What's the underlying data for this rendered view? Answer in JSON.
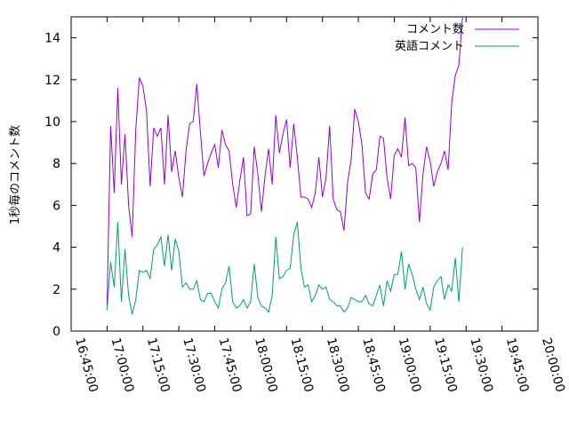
{
  "chart_data": {
    "type": "line",
    "title": "",
    "xlabel": "",
    "ylabel": "1秒毎のコメント数",
    "xlim": [
      "16:45:00",
      "20:00:00"
    ],
    "ylim": [
      0,
      15
    ],
    "x_ticks": [
      "16:45:00",
      "17:00:00",
      "17:15:00",
      "17:30:00",
      "17:45:00",
      "18:00:00",
      "18:15:00",
      "18:30:00",
      "18:45:00",
      "19:00:00",
      "19:15:00",
      "19:30:00",
      "19:45:00",
      "20:00:00"
    ],
    "y_ticks": [
      0,
      2,
      4,
      6,
      8,
      10,
      12,
      14
    ],
    "grid": false,
    "legend": "top-right",
    "series": [
      {
        "name": "コメント数",
        "color": "#9400d3",
        "points": [
          [
            "17:00:00",
            1.2
          ],
          [
            "17:01:30",
            9.8
          ],
          [
            "17:03:00",
            6.6
          ],
          [
            "17:04:30",
            11.6
          ],
          [
            "17:06:00",
            7.0
          ],
          [
            "17:07:30",
            9.4
          ],
          [
            "17:09:00",
            6.0
          ],
          [
            "17:10:30",
            4.5
          ],
          [
            "17:12:00",
            9.6
          ],
          [
            "17:13:30",
            12.1
          ],
          [
            "17:15:00",
            11.7
          ],
          [
            "17:16:30",
            10.5
          ],
          [
            "17:18:00",
            6.9
          ],
          [
            "17:19:30",
            9.7
          ],
          [
            "17:21:00",
            9.3
          ],
          [
            "17:22:30",
            9.7
          ],
          [
            "17:24:00",
            7.0
          ],
          [
            "17:25:30",
            10.3
          ],
          [
            "17:27:00",
            7.6
          ],
          [
            "17:28:30",
            8.6
          ],
          [
            "17:30:00",
            7.3
          ],
          [
            "17:31:30",
            6.4
          ],
          [
            "17:33:00",
            8.6
          ],
          [
            "17:34:30",
            9.9
          ],
          [
            "17:36:00",
            10.0
          ],
          [
            "17:37:30",
            11.8
          ],
          [
            "17:39:00",
            9.5
          ],
          [
            "17:40:30",
            7.4
          ],
          [
            "17:42:00",
            8.0
          ],
          [
            "17:43:30",
            8.5
          ],
          [
            "17:45:00",
            8.9
          ],
          [
            "17:46:30",
            7.8
          ],
          [
            "17:48:00",
            9.6
          ],
          [
            "17:49:30",
            8.9
          ],
          [
            "17:51:00",
            8.6
          ],
          [
            "17:52:30",
            7.0
          ],
          [
            "17:54:00",
            5.9
          ],
          [
            "17:55:30",
            7.2
          ],
          [
            "17:57:00",
            8.3
          ],
          [
            "17:58:30",
            5.5
          ],
          [
            "18:00:00",
            5.6
          ],
          [
            "18:01:30",
            8.8
          ],
          [
            "18:03:00",
            7.5
          ],
          [
            "18:04:30",
            5.7
          ],
          [
            "18:06:00",
            7.4
          ],
          [
            "18:07:30",
            8.7
          ],
          [
            "18:09:00",
            7.0
          ],
          [
            "18:10:30",
            10.3
          ],
          [
            "18:12:00",
            8.5
          ],
          [
            "18:13:30",
            9.4
          ],
          [
            "18:15:00",
            10.1
          ],
          [
            "18:16:30",
            7.8
          ],
          [
            "18:18:00",
            9.9
          ],
          [
            "18:19:30",
            8.3
          ],
          [
            "18:21:00",
            6.4
          ],
          [
            "18:22:30",
            6.4
          ],
          [
            "18:24:00",
            6.3
          ],
          [
            "18:25:30",
            5.9
          ],
          [
            "18:27:00",
            6.6
          ],
          [
            "18:28:30",
            8.3
          ],
          [
            "18:30:00",
            6.4
          ],
          [
            "18:31:30",
            7.3
          ],
          [
            "18:33:00",
            9.8
          ],
          [
            "18:34:30",
            6.3
          ],
          [
            "18:36:00",
            5.8
          ],
          [
            "18:37:30",
            5.7
          ],
          [
            "18:39:00",
            4.8
          ],
          [
            "18:40:30",
            7.1
          ],
          [
            "18:42:00",
            8.2
          ],
          [
            "18:43:30",
            10.6
          ],
          [
            "18:45:00",
            10.0
          ],
          [
            "18:46:30",
            8.9
          ],
          [
            "18:48:00",
            6.6
          ],
          [
            "18:49:30",
            6.3
          ],
          [
            "18:51:00",
            7.5
          ],
          [
            "18:52:30",
            7.7
          ],
          [
            "18:54:00",
            9.3
          ],
          [
            "18:55:30",
            9.2
          ],
          [
            "18:57:00",
            7.3
          ],
          [
            "18:58:30",
            6.3
          ],
          [
            "19:00:00",
            8.4
          ],
          [
            "19:01:30",
            8.7
          ],
          [
            "19:03:00",
            8.3
          ],
          [
            "19:04:30",
            10.2
          ],
          [
            "19:06:00",
            7.9
          ],
          [
            "19:07:30",
            8.0
          ],
          [
            "19:09:00",
            7.8
          ],
          [
            "19:10:30",
            5.2
          ],
          [
            "19:12:00",
            7.5
          ],
          [
            "19:13:30",
            8.8
          ],
          [
            "19:15:00",
            8.1
          ],
          [
            "19:16:30",
            6.9
          ],
          [
            "19:18:00",
            7.6
          ],
          [
            "19:19:30",
            8.0
          ],
          [
            "19:21:00",
            8.6
          ],
          [
            "19:22:30",
            7.7
          ],
          [
            "19:24:00",
            10.9
          ],
          [
            "19:25:30",
            12.2
          ],
          [
            "19:27:00",
            12.7
          ],
          [
            "19:28:30",
            15.0
          ]
        ]
      },
      {
        "name": "英語コメント",
        "color": "#009e73",
        "points": [
          [
            "17:00:00",
            1.0
          ],
          [
            "17:01:30",
            3.3
          ],
          [
            "17:03:00",
            2.1
          ],
          [
            "17:04:30",
            5.2
          ],
          [
            "17:06:00",
            1.4
          ],
          [
            "17:07:30",
            3.9
          ],
          [
            "17:09:00",
            1.7
          ],
          [
            "17:10:30",
            0.8
          ],
          [
            "17:12:00",
            1.5
          ],
          [
            "17:13:30",
            2.9
          ],
          [
            "17:15:00",
            2.8
          ],
          [
            "17:16:30",
            2.9
          ],
          [
            "17:18:00",
            2.5
          ],
          [
            "17:19:30",
            3.9
          ],
          [
            "17:21:00",
            4.1
          ],
          [
            "17:22:30",
            4.5
          ],
          [
            "17:24:00",
            3.1
          ],
          [
            "17:25:30",
            4.6
          ],
          [
            "17:27:00",
            2.9
          ],
          [
            "17:28:30",
            4.4
          ],
          [
            "17:30:00",
            3.8
          ],
          [
            "17:31:30",
            2.1
          ],
          [
            "17:33:00",
            2.3
          ],
          [
            "17:34:30",
            2.0
          ],
          [
            "17:36:00",
            2.0
          ],
          [
            "17:37:30",
            2.4
          ],
          [
            "17:39:00",
            1.5
          ],
          [
            "17:40:30",
            1.4
          ],
          [
            "17:42:00",
            1.8
          ],
          [
            "17:43:30",
            1.8
          ],
          [
            "17:45:00",
            1.4
          ],
          [
            "17:46:30",
            1.1
          ],
          [
            "17:48:00",
            2.0
          ],
          [
            "17:49:30",
            2.3
          ],
          [
            "17:51:00",
            3.1
          ],
          [
            "17:52:30",
            1.4
          ],
          [
            "17:54:00",
            1.1
          ],
          [
            "17:55:30",
            1.2
          ],
          [
            "17:57:00",
            1.5
          ],
          [
            "17:58:30",
            1.1
          ],
          [
            "18:00:00",
            1.4
          ],
          [
            "18:01:30",
            3.2
          ],
          [
            "18:03:00",
            1.6
          ],
          [
            "18:04:30",
            1.2
          ],
          [
            "18:06:00",
            1.1
          ],
          [
            "18:07:30",
            0.9
          ],
          [
            "18:09:00",
            1.7
          ],
          [
            "18:10:30",
            4.5
          ],
          [
            "18:12:00",
            2.5
          ],
          [
            "18:13:30",
            2.6
          ],
          [
            "18:15:00",
            2.9
          ],
          [
            "18:16:30",
            3.0
          ],
          [
            "18:18:00",
            4.6
          ],
          [
            "18:19:30",
            5.2
          ],
          [
            "18:21:00",
            3.0
          ],
          [
            "18:22:30",
            2.1
          ],
          [
            "18:24:00",
            2.2
          ],
          [
            "18:25:30",
            1.4
          ],
          [
            "18:27:00",
            1.7
          ],
          [
            "18:28:30",
            2.2
          ],
          [
            "18:30:00",
            2.0
          ],
          [
            "18:31:30",
            2.1
          ],
          [
            "18:33:00",
            1.5
          ],
          [
            "18:34:30",
            1.4
          ],
          [
            "18:36:00",
            1.2
          ],
          [
            "18:37:30",
            1.2
          ],
          [
            "18:39:00",
            0.9
          ],
          [
            "18:40:30",
            1.1
          ],
          [
            "18:42:00",
            1.6
          ],
          [
            "18:43:30",
            1.5
          ],
          [
            "18:45:00",
            1.4
          ],
          [
            "18:46:30",
            1.4
          ],
          [
            "18:48:00",
            1.7
          ],
          [
            "18:49:30",
            1.3
          ],
          [
            "18:51:00",
            1.2
          ],
          [
            "18:52:30",
            1.7
          ],
          [
            "18:54:00",
            2.2
          ],
          [
            "18:55:30",
            1.2
          ],
          [
            "18:57:00",
            2.4
          ],
          [
            "18:58:30",
            1.9
          ],
          [
            "19:00:00",
            2.7
          ],
          [
            "19:01:30",
            2.7
          ],
          [
            "19:03:00",
            3.8
          ],
          [
            "19:04:30",
            2.0
          ],
          [
            "19:06:00",
            3.2
          ],
          [
            "19:07:30",
            2.7
          ],
          [
            "19:09:00",
            2.0
          ],
          [
            "19:10:30",
            1.5
          ],
          [
            "19:12:00",
            2.1
          ],
          [
            "19:13:30",
            1.3
          ],
          [
            "19:15:00",
            1.0
          ],
          [
            "19:16:30",
            2.1
          ],
          [
            "19:18:00",
            2.4
          ],
          [
            "19:19:30",
            2.6
          ],
          [
            "19:21:00",
            1.5
          ],
          [
            "19:22:30",
            2.2
          ],
          [
            "19:24:00",
            1.9
          ],
          [
            "19:25:30",
            3.5
          ],
          [
            "19:27:00",
            1.4
          ],
          [
            "19:28:30",
            4.0
          ]
        ]
      }
    ]
  }
}
